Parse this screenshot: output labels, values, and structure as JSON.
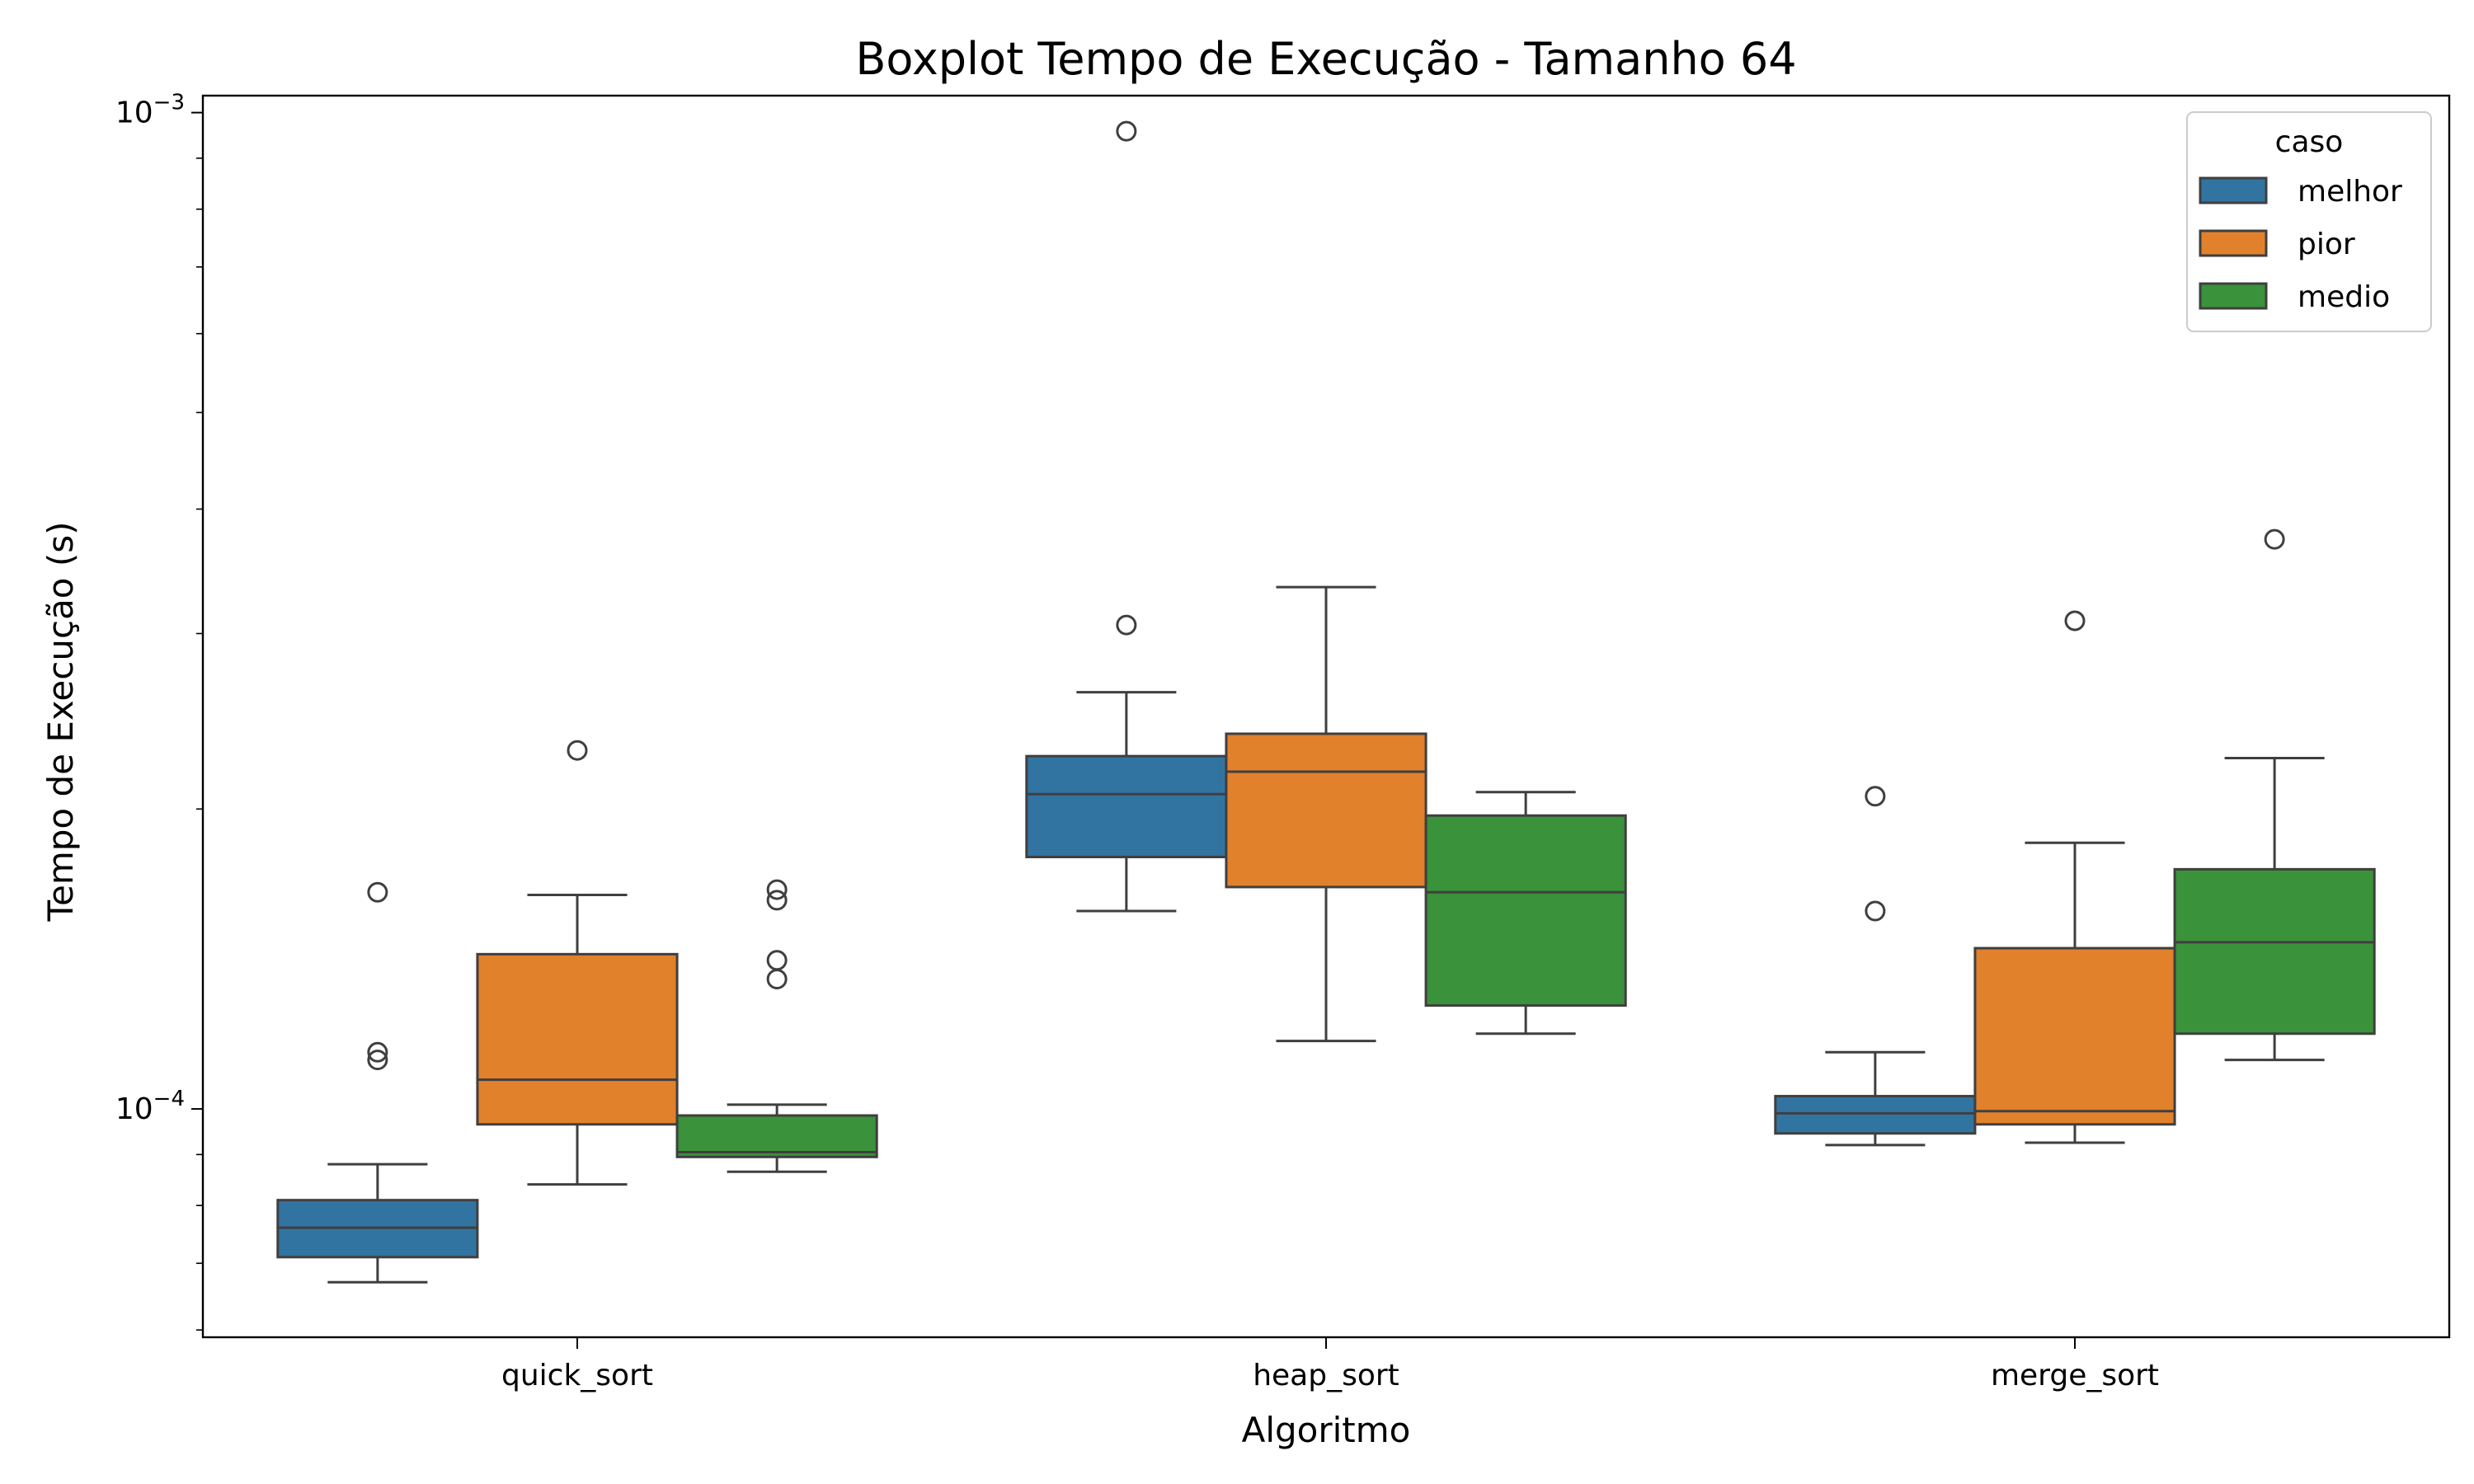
{
  "chart_data": {
    "type": "boxplot",
    "title": "Boxplot Tempo de Execução - Tamanho 64",
    "xlabel": "Algoritmo",
    "ylabel": "Tempo de Execução (s)",
    "yscale": "log",
    "ylim": [
      5.9e-05,
      0.00104
    ],
    "y_ticks": [
      {
        "value": 0.001,
        "base": "10",
        "exp": "−3"
      },
      {
        "value": 0.0001,
        "base": "10",
        "exp": "−4"
      }
    ],
    "categories": [
      "quick_sort",
      "heap_sort",
      "merge_sort"
    ],
    "legend": {
      "title": "caso",
      "position": "top-right"
    },
    "grid": false,
    "series": [
      {
        "name": "melhor",
        "color": "#3274a1",
        "boxes": [
          {
            "whisker_low": 6.7e-05,
            "q1": 7.1e-05,
            "median": 7.6e-05,
            "q3": 8.1e-05,
            "whisker_high": 8.8e-05,
            "outliers": [
              0.000112,
              0.000114,
              0.000165
            ]
          },
          {
            "whisker_low": 0.000158,
            "q1": 0.000179,
            "median": 0.000207,
            "q3": 0.000226,
            "whisker_high": 0.000262,
            "outliers": [
              0.000306,
              0.000958
            ]
          },
          {
            "whisker_low": 9.2e-05,
            "q1": 9.45e-05,
            "median": 9.9e-05,
            "q3": 0.000103,
            "whisker_high": 0.000114,
            "outliers": [
              0.000158,
              0.000206
            ]
          }
        ]
      },
      {
        "name": "pior",
        "color": "#e1812c",
        "boxes": [
          {
            "whisker_low": 8.4e-05,
            "q1": 9.65e-05,
            "median": 0.000107,
            "q3": 0.000143,
            "whisker_high": 0.000164,
            "outliers": [
              0.000229
            ]
          },
          {
            "whisker_low": 0.000117,
            "q1": 0.000167,
            "median": 0.000218,
            "q3": 0.000238,
            "whisker_high": 0.000334,
            "outliers": []
          },
          {
            "whisker_low": 9.25e-05,
            "q1": 9.65e-05,
            "median": 9.95e-05,
            "q3": 0.000145,
            "whisker_high": 0.000185,
            "outliers": [
              0.000309
            ]
          }
        ]
      },
      {
        "name": "medio",
        "color": "#3a923a",
        "boxes": [
          {
            "whisker_low": 8.65e-05,
            "q1": 8.95e-05,
            "median": 9.05e-05,
            "q3": 9.85e-05,
            "whisker_high": 0.000101,
            "outliers": [
              0.000135,
              0.000141,
              0.000162,
              0.000166
            ]
          },
          {
            "whisker_low": 0.000119,
            "q1": 0.000127,
            "median": 0.000165,
            "q3": 0.000197,
            "whisker_high": 0.000208,
            "outliers": []
          },
          {
            "whisker_low": 0.000112,
            "q1": 0.000119,
            "median": 0.000147,
            "q3": 0.000174,
            "whisker_high": 0.000225,
            "outliers": [
              0.000373
            ]
          }
        ]
      }
    ]
  }
}
